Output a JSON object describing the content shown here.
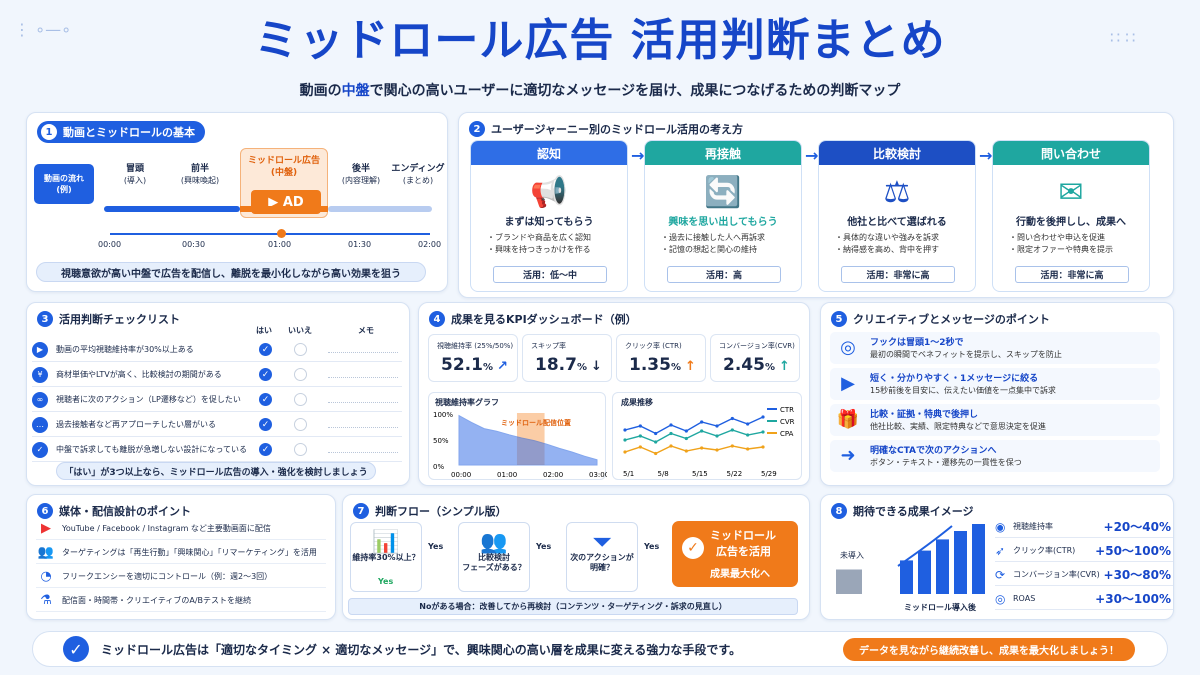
{
  "header": {
    "title": "ミッドロール広告 活用判断まとめ",
    "subtitle_pre": "動画の",
    "subtitle_em": "中盤",
    "subtitle_post": "で関心の高いユーザーに適切なメッセージを届け、成果につなげるための判断マップ"
  },
  "sec1": {
    "num": "1",
    "title": "動画とミッドロールの基本",
    "flow_label_1": "動画の流れ",
    "flow_label_2": "(例)",
    "phases": [
      {
        "name": "冒頭",
        "sub": "(導入)"
      },
      {
        "name": "前半",
        "sub": "(興味喚起)"
      },
      {
        "name": "ミッドロール広告",
        "sub": "(中盤)"
      },
      {
        "name": "後半",
        "sub": "(内容理解)"
      },
      {
        "name": "エンディング",
        "sub": "(まとめ)"
      }
    ],
    "ad_label": "AD",
    "times": [
      "00:00",
      "00:30",
      "01:00",
      "01:30",
      "02:00"
    ],
    "note": "視聴意欲が高い中盤で広告を配信し、離脱を最小化しながら高い効果を狙う"
  },
  "sec2": {
    "num": "2",
    "title": "ユーザージャーニー別のミッドロール活用の考え方",
    "stages": [
      {
        "name": "認知",
        "sub": "まずは知ってもらう",
        "b1": "・ブランドや商品を広く認知",
        "b2": "・興味を持つきっかけを作る",
        "use": "活用：低〜中",
        "color": "#2f6ee6",
        "icon": "megaphone-icon",
        "glyph": "📢"
      },
      {
        "name": "再接触",
        "sub": "興味を思い出してもらう",
        "b1": "・過去に接触した人へ再訴求",
        "b2": "・記憶の想起と関心の維持",
        "use": "活用：高",
        "color": "#1fa7a0",
        "icon": "refresh-user-icon",
        "glyph": "🔄"
      },
      {
        "name": "比較検討",
        "sub": "他社と比べて選ばれる",
        "b1": "・具体的な違いや強みを訴求",
        "b2": "・納得感を高め、背中を押す",
        "use": "活用：非常に高",
        "color": "#1d4fc4",
        "icon": "scales-icon",
        "glyph": "⚖"
      },
      {
        "name": "問い合わせ",
        "sub": "行動を後押しし、成果へ",
        "b1": "・問い合わせや申込を促進",
        "b2": "・限定オファーや特典を提示",
        "use": "活用：非常に高",
        "color": "#1fa7a0",
        "icon": "mail-icon",
        "glyph": "✉"
      }
    ]
  },
  "sec3": {
    "num": "3",
    "title": "活用判断チェックリスト",
    "col_yes": "はい",
    "col_no": "いいえ",
    "col_memo": "メモ",
    "items": [
      {
        "text": "動画の平均視聴維持率が30%以上ある",
        "icon": "play-icon",
        "glyph": "▶"
      },
      {
        "text": "商材単価やLTVが高く、比較検討の期間がある",
        "icon": "yen-icon",
        "glyph": "¥"
      },
      {
        "text": "視聴者に次のアクション（LP遷移など）を促したい",
        "icon": "link-icon",
        "glyph": "∞"
      },
      {
        "text": "過去接触者など再アプローチしたい層がいる",
        "icon": "chat-icon",
        "glyph": "…"
      },
      {
        "text": "中盤で訴求しても離脱が急増しない設計になっている",
        "icon": "shield-icon",
        "glyph": "✓"
      }
    ],
    "note": "「はい」が3つ以上なら、ミッドロール広告の導入・強化を検討しましょう"
  },
  "sec4": {
    "num": "4",
    "title": "成果を見るKPIダッシュボード（例）",
    "kpis": [
      {
        "label": "視聴維持率 (25%/50%)",
        "value": "52.1",
        "unit": "%",
        "trend": "↗"
      },
      {
        "label": "スキップ率",
        "value": "18.7",
        "unit": "%",
        "trend": "↓"
      },
      {
        "label": "クリック率 (CTR)",
        "value": "1.35",
        "unit": "%",
        "trend": "↑"
      },
      {
        "label": "コンバージョン率(CVR)",
        "value": "2.45",
        "unit": "%",
        "trend": "↑"
      }
    ],
    "retention_title": "視聴維持率グラフ",
    "retention_highlight": "ミッドロール配信位置",
    "retention_y": [
      "100%",
      "50%",
      "0%"
    ],
    "retention_x": [
      "00:00",
      "01:00",
      "02:00",
      "03:00"
    ],
    "trend_title": "成果推移",
    "trend_x": [
      "5/1",
      "5/8",
      "5/15",
      "5/22",
      "5/29"
    ],
    "trend_legend": [
      "CTR",
      "CVR",
      "CPA"
    ],
    "trend_series": {
      "CTR": [
        0.62,
        0.7,
        0.55,
        0.72,
        0.6,
        0.78,
        0.7,
        0.85,
        0.74,
        0.88
      ],
      "CVR": [
        0.42,
        0.5,
        0.38,
        0.55,
        0.45,
        0.6,
        0.5,
        0.62,
        0.52,
        0.58
      ],
      "CPA": [
        0.18,
        0.28,
        0.15,
        0.3,
        0.2,
        0.26,
        0.22,
        0.3,
        0.24,
        0.28
      ]
    },
    "retention_values": [
      0.95,
      0.82,
      0.7,
      0.65,
      0.58,
      0.52,
      0.47,
      0.4,
      0.32,
      0.25,
      0.17,
      0.1
    ]
  },
  "sec5": {
    "num": "5",
    "title": "クリエイティブとメッセージのポイント",
    "items": [
      {
        "t": "フックは冒頭1〜2秒で",
        "d": "最初の瞬間でベネフィットを提示し、スキップを防止",
        "icon": "target-icon",
        "glyph": "◎"
      },
      {
        "t": "短く・分かりやすく・1メッセージに絞る",
        "d": "15秒前後を目安に、伝えたい価値を一点集中で訴求",
        "icon": "screen-icon",
        "glyph": "▶"
      },
      {
        "t": "比較・証拠・特典で後押し",
        "d": "他社比較、実績、限定特典などで意思決定を促進",
        "icon": "gift-icon",
        "glyph": "🎁"
      },
      {
        "t": "明確なCTAで次のアクションへ",
        "d": "ボタン・テキスト・遷移先の一貫性を保つ",
        "icon": "arrow-circle-icon",
        "glyph": "➜"
      }
    ]
  },
  "sec6": {
    "num": "6",
    "title": "媒体・配信設計のポイント",
    "items": [
      {
        "text": "YouTube / Facebook / Instagram など主要動画面に配信",
        "icon": "youtube-icon",
        "glyph": "▶"
      },
      {
        "text": "ターゲティングは「再生行動」「興味関心」「リマーケティング」を活用",
        "icon": "users-icon",
        "glyph": "👥"
      },
      {
        "text": "フリークエンシーを適切にコントロール（例：週2〜3回）",
        "icon": "clock-icon",
        "glyph": "◔"
      },
      {
        "text": "配信面・時間帯・クリエイティブのA/Bテストを継続",
        "icon": "flask-icon",
        "glyph": "⚗"
      }
    ]
  },
  "sec7": {
    "num": "7",
    "title": "判断フロー（シンプル版）",
    "steps": [
      {
        "text1": "維持率30%以上？",
        "text2": "",
        "icon": "bar-chart-icon",
        "glyph": "📊"
      },
      {
        "text1": "比較検討",
        "text2": "フェーズがある？",
        "icon": "people-icon",
        "glyph": "👥"
      },
      {
        "text1": "次のアクションが",
        "text2": "明確？",
        "icon": "funnel-icon",
        "glyph": "⏷"
      }
    ],
    "yes": "Yes",
    "final_1": "ミッドロール",
    "final_2": "広告を活用",
    "final_3": "成果最大化へ",
    "no_note": "Noがある場合：改善してから再検討（コンテンツ・ターゲティング・訴求の見直し）"
  },
  "sec8": {
    "num": "8",
    "title": "期待できる成果イメージ",
    "before_label": "未導入",
    "after_label": "ミッドロール導入後",
    "bars": [
      0.35,
      0.48,
      0.62,
      0.78,
      0.9,
      1.0
    ],
    "rows": [
      {
        "label": "視聴維持率",
        "value": "+20〜40%",
        "icon": "eye-icon",
        "glyph": "◉"
      },
      {
        "label": "クリック率(CTR)",
        "value": "+50〜100%",
        "icon": "cursor-icon",
        "glyph": "➶"
      },
      {
        "label": "コンバージョン率(CVR)",
        "value": "+30〜80%",
        "icon": "cycle-icon",
        "glyph": "⟳"
      },
      {
        "label": "ROAS",
        "value": "+30〜100%",
        "icon": "coin-icon",
        "glyph": "◎"
      }
    ]
  },
  "footer": {
    "text": "ミッドロール広告は「適切なタイミング × 適切なメッセージ」で、興味関心の高い層を成果に変える強力な手段です。",
    "pill": "データを見ながら継続改善し、成果を最大化しましょう！"
  }
}
